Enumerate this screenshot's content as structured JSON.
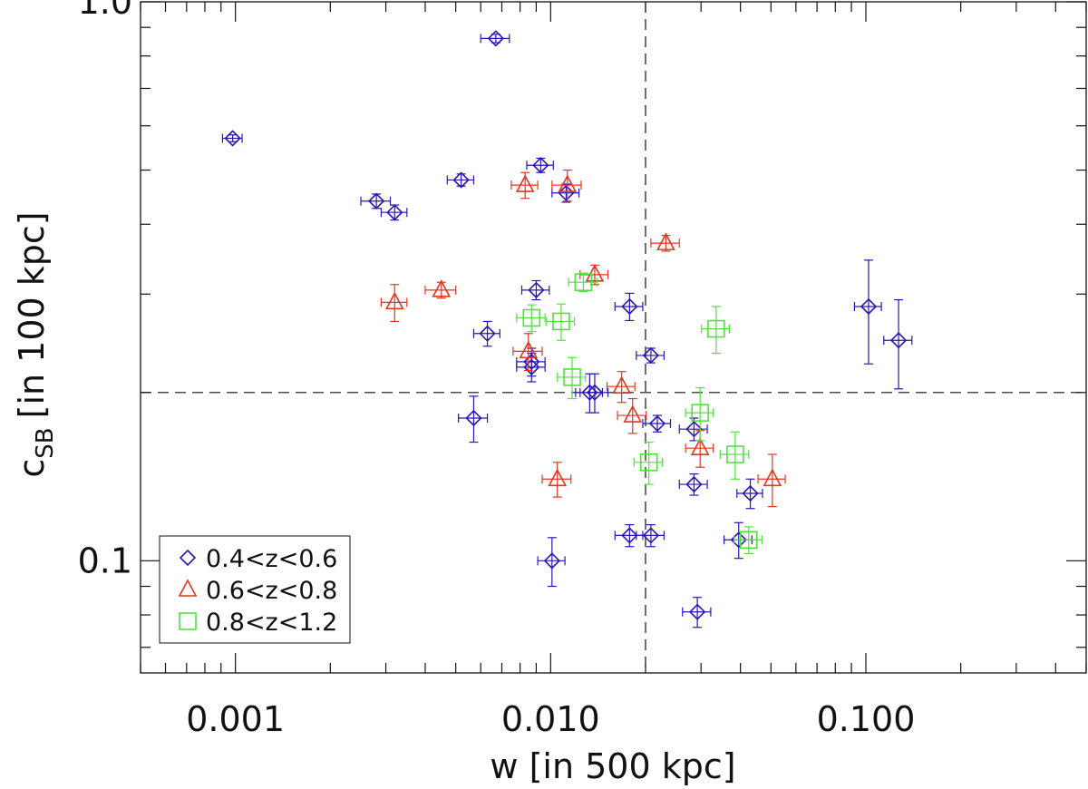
{
  "chart_data": {
    "type": "scatter",
    "title": "",
    "xlabel": "w [in 500 kpc]",
    "ylabel_main": "c",
    "ylabel_sub": "SB",
    "ylabel_rest": "[in 100 kpc]",
    "xscale": "log",
    "yscale": "log",
    "xlim": [
      0.0005,
      0.5
    ],
    "ylim": [
      0.063,
      1.0
    ],
    "grid": false,
    "legend_position": "bottom-left",
    "x_ticks": [
      {
        "value": 0.001,
        "label": "0.001"
      },
      {
        "value": 0.01,
        "label": "0.010"
      },
      {
        "value": 0.1,
        "label": "0.100"
      }
    ],
    "y_ticks": [
      {
        "value": 0.1,
        "label": "0.1"
      },
      {
        "value": 1.0,
        "label": "1.0"
      }
    ],
    "reference_lines": {
      "x": 0.02,
      "y": 0.2
    },
    "series": [
      {
        "name": "0.4<z<0.6",
        "marker": "diamond",
        "color": "#2a14b4",
        "points": [
          {
            "x": 0.00098,
            "y": 0.57,
            "xerr": 7e-05,
            "yerr": 0.008
          },
          {
            "x": 0.0067,
            "y": 0.86,
            "xerr": 0.0007,
            "yerr": 0.015
          },
          {
            "x": 0.0028,
            "y": 0.44,
            "xerr": 0.0003,
            "yerr": 0.013
          },
          {
            "x": 0.0032,
            "y": 0.42,
            "xerr": 0.0003,
            "yerr": 0.013
          },
          {
            "x": 0.0052,
            "y": 0.48,
            "xerr": 0.0005,
            "yerr": 0.012
          },
          {
            "x": 0.0093,
            "y": 0.51,
            "xerr": 0.0009,
            "yerr": 0.015
          },
          {
            "x": 0.0112,
            "y": 0.455,
            "xerr": 0.0011,
            "yerr": 0.017
          },
          {
            "x": 0.009,
            "y": 0.305,
            "xerr": 0.0009,
            "yerr": 0.012
          },
          {
            "x": 0.0063,
            "y": 0.255,
            "xerr": 0.0006,
            "yerr": 0.013
          },
          {
            "x": 0.0087,
            "y": 0.227,
            "xerr": 0.0009,
            "yerr": 0.013
          },
          {
            "x": 0.0087,
            "y": 0.222,
            "xerr": 0.0009,
            "yerr": 0.013
          },
          {
            "x": 0.0133,
            "y": 0.2,
            "xerr": 0.0013,
            "yerr": 0.016
          },
          {
            "x": 0.0138,
            "y": 0.2,
            "xerr": 0.0014,
            "yerr": 0.016
          },
          {
            "x": 0.0057,
            "y": 0.18,
            "xerr": 0.0006,
            "yerr": 0.017
          },
          {
            "x": 0.0178,
            "y": 0.285,
            "xerr": 0.0018,
            "yerr": 0.016
          },
          {
            "x": 0.0208,
            "y": 0.233,
            "xerr": 0.0021,
            "yerr": 0.007
          },
          {
            "x": 0.0218,
            "y": 0.176,
            "xerr": 0.0022,
            "yerr": 0.006
          },
          {
            "x": 0.0285,
            "y": 0.172,
            "xerr": 0.0029,
            "yerr": 0.008
          },
          {
            "x": 0.0285,
            "y": 0.137,
            "xerr": 0.0029,
            "yerr": 0.006
          },
          {
            "x": 0.043,
            "y": 0.132,
            "xerr": 0.004,
            "yerr": 0.008
          },
          {
            "x": 0.0178,
            "y": 0.111,
            "xerr": 0.0018,
            "yerr": 0.005
          },
          {
            "x": 0.0208,
            "y": 0.111,
            "xerr": 0.0021,
            "yerr": 0.005
          },
          {
            "x": 0.0101,
            "y": 0.1,
            "xerr": 0.001,
            "yerr": 0.01
          },
          {
            "x": 0.0292,
            "y": 0.081,
            "xerr": 0.003,
            "yerr": 0.005
          },
          {
            "x": 0.0395,
            "y": 0.109,
            "xerr": 0.004,
            "yerr": 0.008
          },
          {
            "x": 0.102,
            "y": 0.285,
            "xerr": 0.01,
            "yerr": 0.06
          },
          {
            "x": 0.127,
            "y": 0.248,
            "xerr": 0.013,
            "yerr": 0.045
          }
        ]
      },
      {
        "name": "0.6<z<0.8",
        "marker": "triangle",
        "color": "#e0371e",
        "points": [
          {
            "x": 0.0083,
            "y": 0.47,
            "xerr": 0.0008,
            "yerr": 0.025
          },
          {
            "x": 0.0113,
            "y": 0.47,
            "xerr": 0.0012,
            "yerr": 0.03
          },
          {
            "x": 0.0232,
            "y": 0.37,
            "xerr": 0.0024,
            "yerr": 0.012
          },
          {
            "x": 0.0045,
            "y": 0.305,
            "xerr": 0.0005,
            "yerr": 0.01
          },
          {
            "x": 0.0138,
            "y": 0.325,
            "xerr": 0.0014,
            "yerr": 0.013
          },
          {
            "x": 0.0032,
            "y": 0.29,
            "xerr": 0.0003,
            "yerr": 0.022
          },
          {
            "x": 0.0085,
            "y": 0.237,
            "xerr": 0.0009,
            "yerr": 0.018
          },
          {
            "x": 0.0168,
            "y": 0.205,
            "xerr": 0.0017,
            "yerr": 0.013
          },
          {
            "x": 0.0182,
            "y": 0.182,
            "xerr": 0.0019,
            "yerr": 0.013
          },
          {
            "x": 0.0298,
            "y": 0.159,
            "xerr": 0.003,
            "yerr": 0.012
          },
          {
            "x": 0.0105,
            "y": 0.14,
            "xerr": 0.0011,
            "yerr": 0.01
          },
          {
            "x": 0.0505,
            "y": 0.14,
            "xerr": 0.005,
            "yerr": 0.015
          }
        ]
      },
      {
        "name": "0.8<z<1.2",
        "marker": "square",
        "color": "#4fe23c",
        "points": [
          {
            "x": 0.0127,
            "y": 0.315,
            "xerr": 0.0013,
            "yerr": 0.012
          },
          {
            "x": 0.0087,
            "y": 0.272,
            "xerr": 0.0009,
            "yerr": 0.015
          },
          {
            "x": 0.0108,
            "y": 0.268,
            "xerr": 0.0011,
            "yerr": 0.02
          },
          {
            "x": 0.0335,
            "y": 0.26,
            "xerr": 0.0034,
            "yerr": 0.025
          },
          {
            "x": 0.0117,
            "y": 0.213,
            "xerr": 0.0012,
            "yerr": 0.018
          },
          {
            "x": 0.0298,
            "y": 0.184,
            "xerr": 0.003,
            "yerr": 0.02
          },
          {
            "x": 0.0205,
            "y": 0.15,
            "xerr": 0.0021,
            "yerr": 0.013
          },
          {
            "x": 0.0385,
            "y": 0.155,
            "xerr": 0.004,
            "yerr": 0.015
          },
          {
            "x": 0.0425,
            "y": 0.109,
            "xerr": 0.0043,
            "yerr": 0.006
          }
        ]
      }
    ]
  }
}
